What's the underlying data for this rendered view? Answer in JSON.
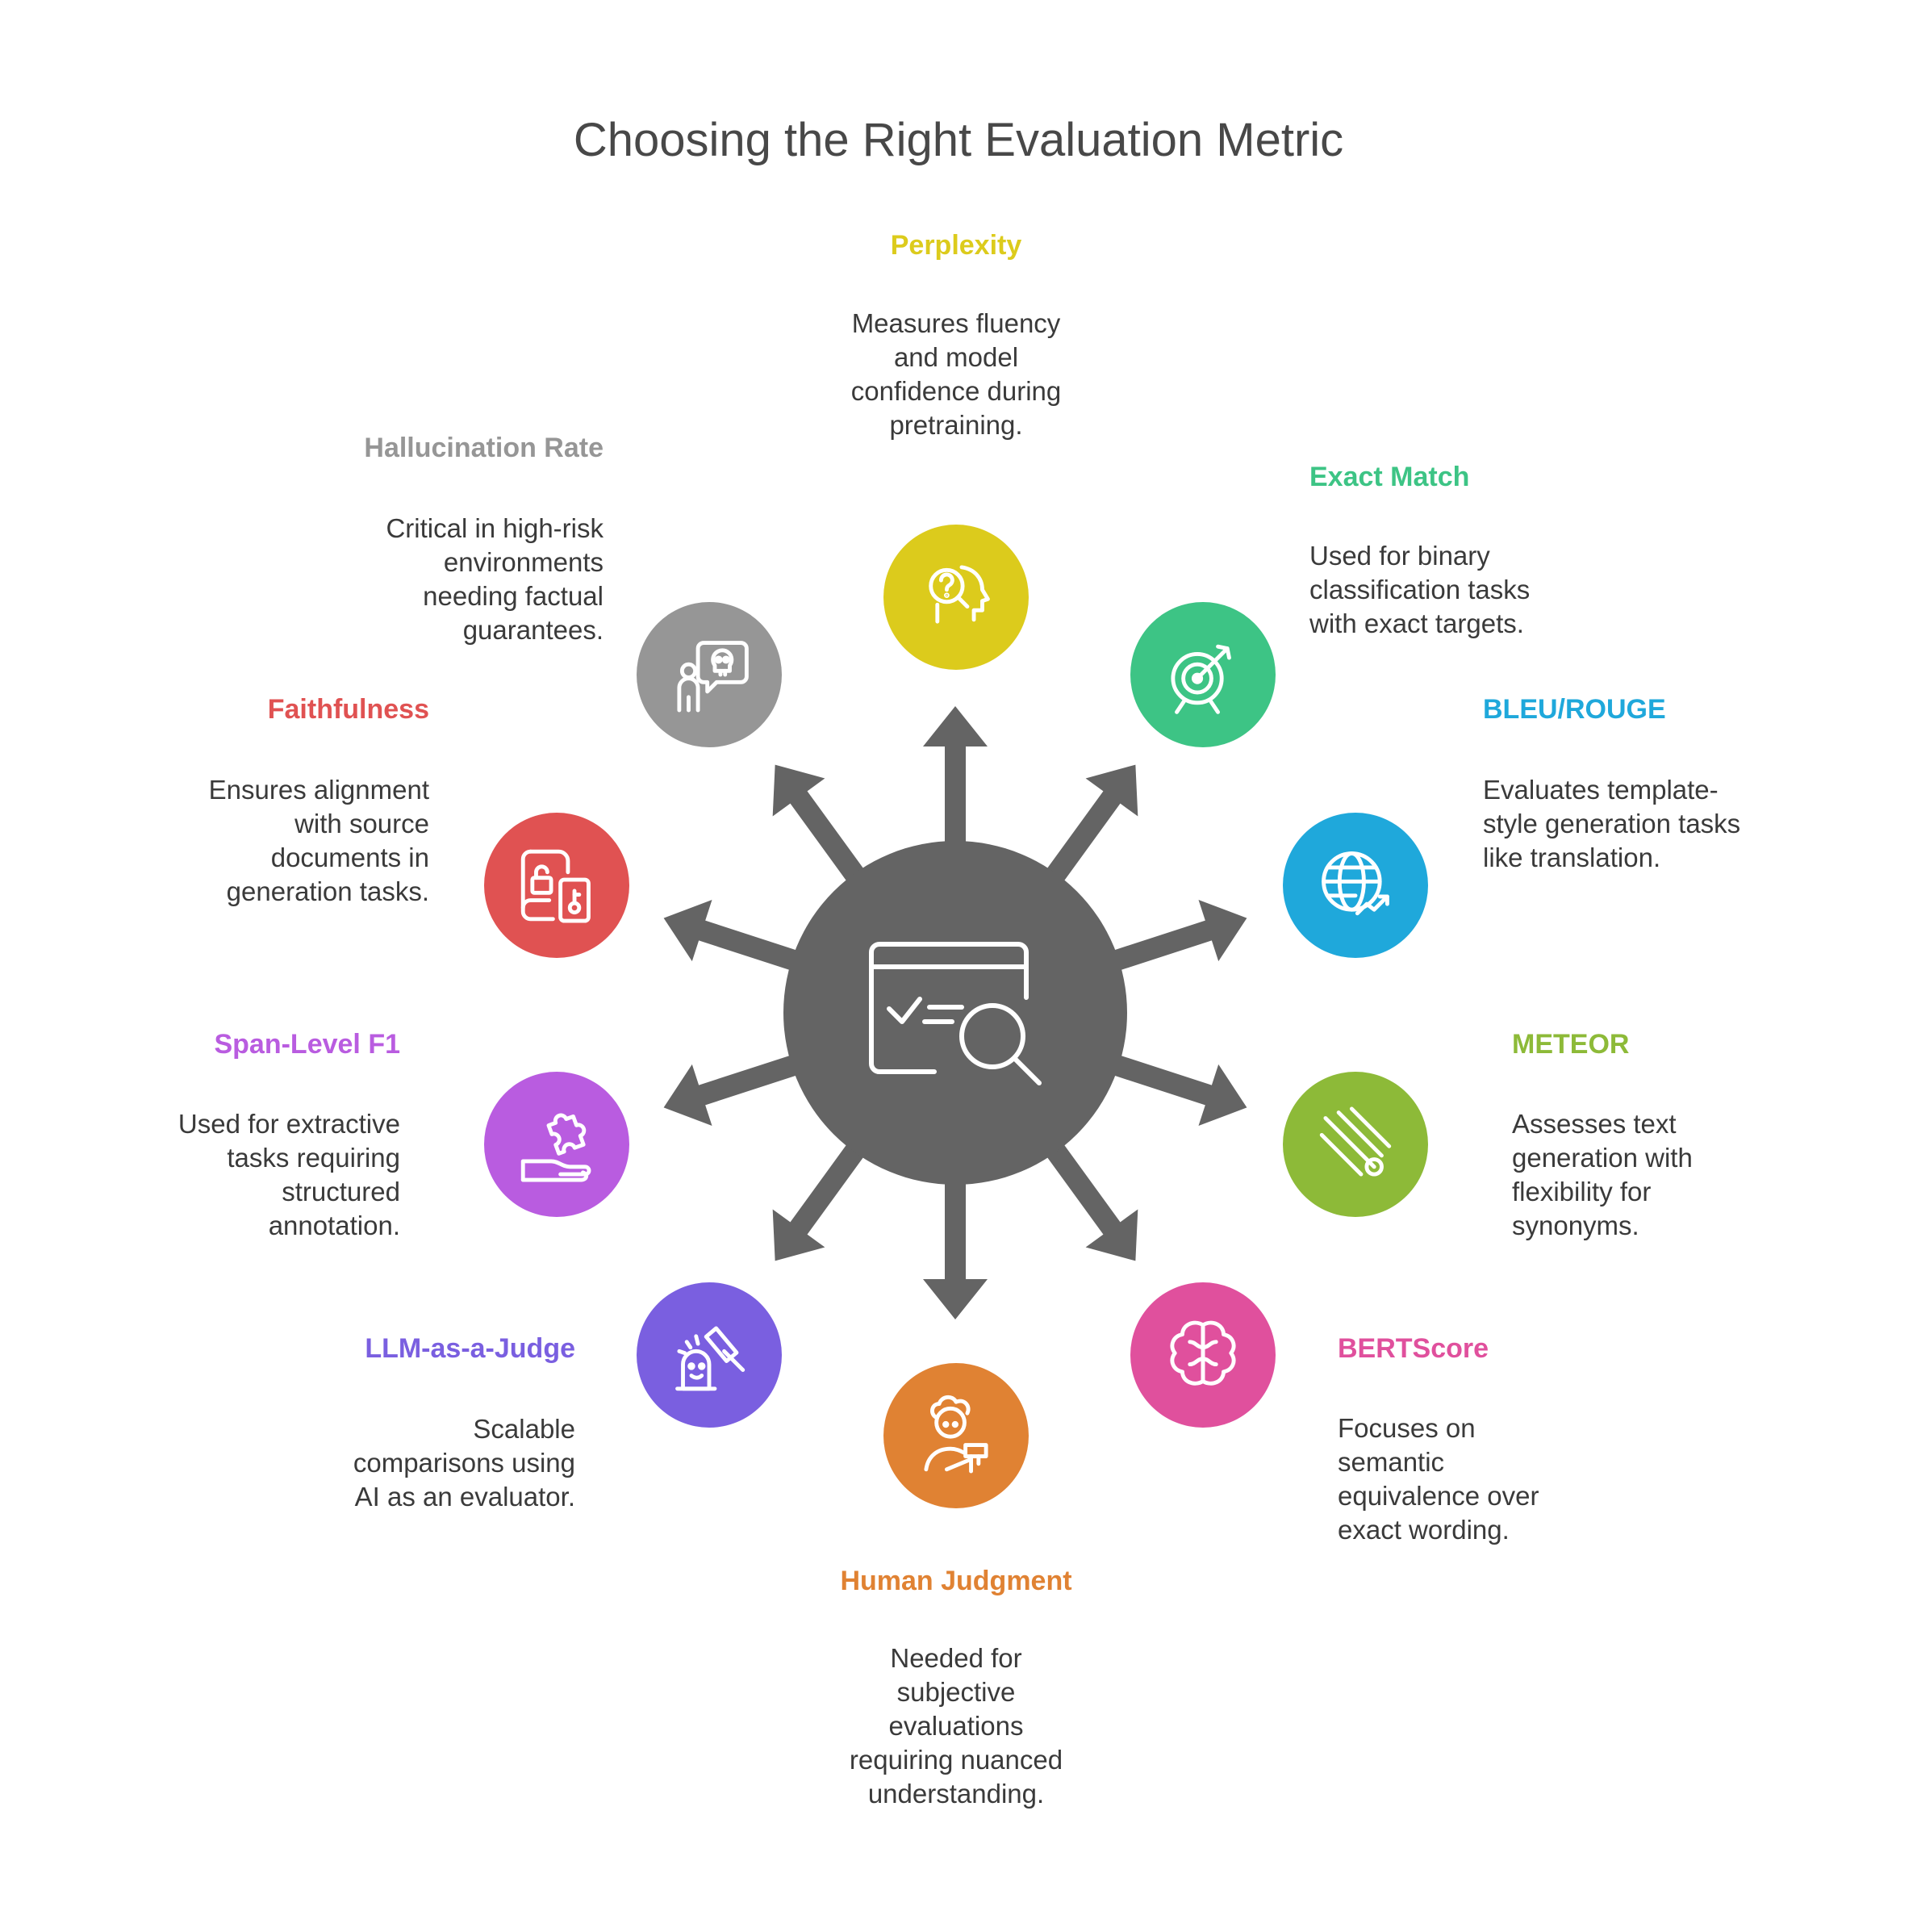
{
  "title": "Choosing the Right Evaluation Metric",
  "hub": {
    "icon": "evaluation-search-icon",
    "color": "#646464"
  },
  "metrics": [
    {
      "id": "perplexity",
      "label": "Perplexity",
      "color": "#DCCB1C",
      "icon": "question-head-icon",
      "description": "Measures fluency and model confidence during pretraining."
    },
    {
      "id": "exact-match",
      "label": "Exact Match",
      "color": "#3DC485",
      "icon": "target-arrow-icon",
      "description": "Used for binary classification tasks with exact targets."
    },
    {
      "id": "bleu-rouge",
      "label": "BLEU/ROUGE",
      "color": "#1FA8DB",
      "icon": "globe-growth-icon",
      "description": "Evaluates template-style generation tasks like translation."
    },
    {
      "id": "meteor",
      "label": "METEOR",
      "color": "#8DBA38",
      "icon": "meteor-icon",
      "description": "Assesses text generation with flexibility for synonyms."
    },
    {
      "id": "bertscore",
      "label": "BERTScore",
      "color": "#E0509D",
      "icon": "brain-icon",
      "description": "Focuses on semantic equivalence over exact wording."
    },
    {
      "id": "human-judgment",
      "label": "Human Judgment",
      "color": "#E08233",
      "icon": "person-gavel-icon",
      "description": "Needed for subjective evaluations requiring nuanced understanding."
    },
    {
      "id": "llm-as-a-judge",
      "label": "LLM-as-a-Judge",
      "color": "#7A5FE0",
      "icon": "robot-gavel-icon",
      "description": "Scalable comparisons using AI as an evaluator."
    },
    {
      "id": "span-level-f1",
      "label": "Span-Level F1",
      "color": "#B95CE0",
      "icon": "puzzle-hand-icon",
      "description": "Used for extractive tasks requiring structured annotation."
    },
    {
      "id": "faithfulness",
      "label": "Faithfulness",
      "color": "#E05252",
      "icon": "locked-document-icon",
      "description": "Ensures alignment with source documents in generation tasks."
    },
    {
      "id": "hallucination-rate",
      "label": "Hallucination Rate",
      "color": "#969696",
      "icon": "person-skull-speech-icon",
      "description": "Critical in high-risk environments needing factual guarantees."
    }
  ]
}
